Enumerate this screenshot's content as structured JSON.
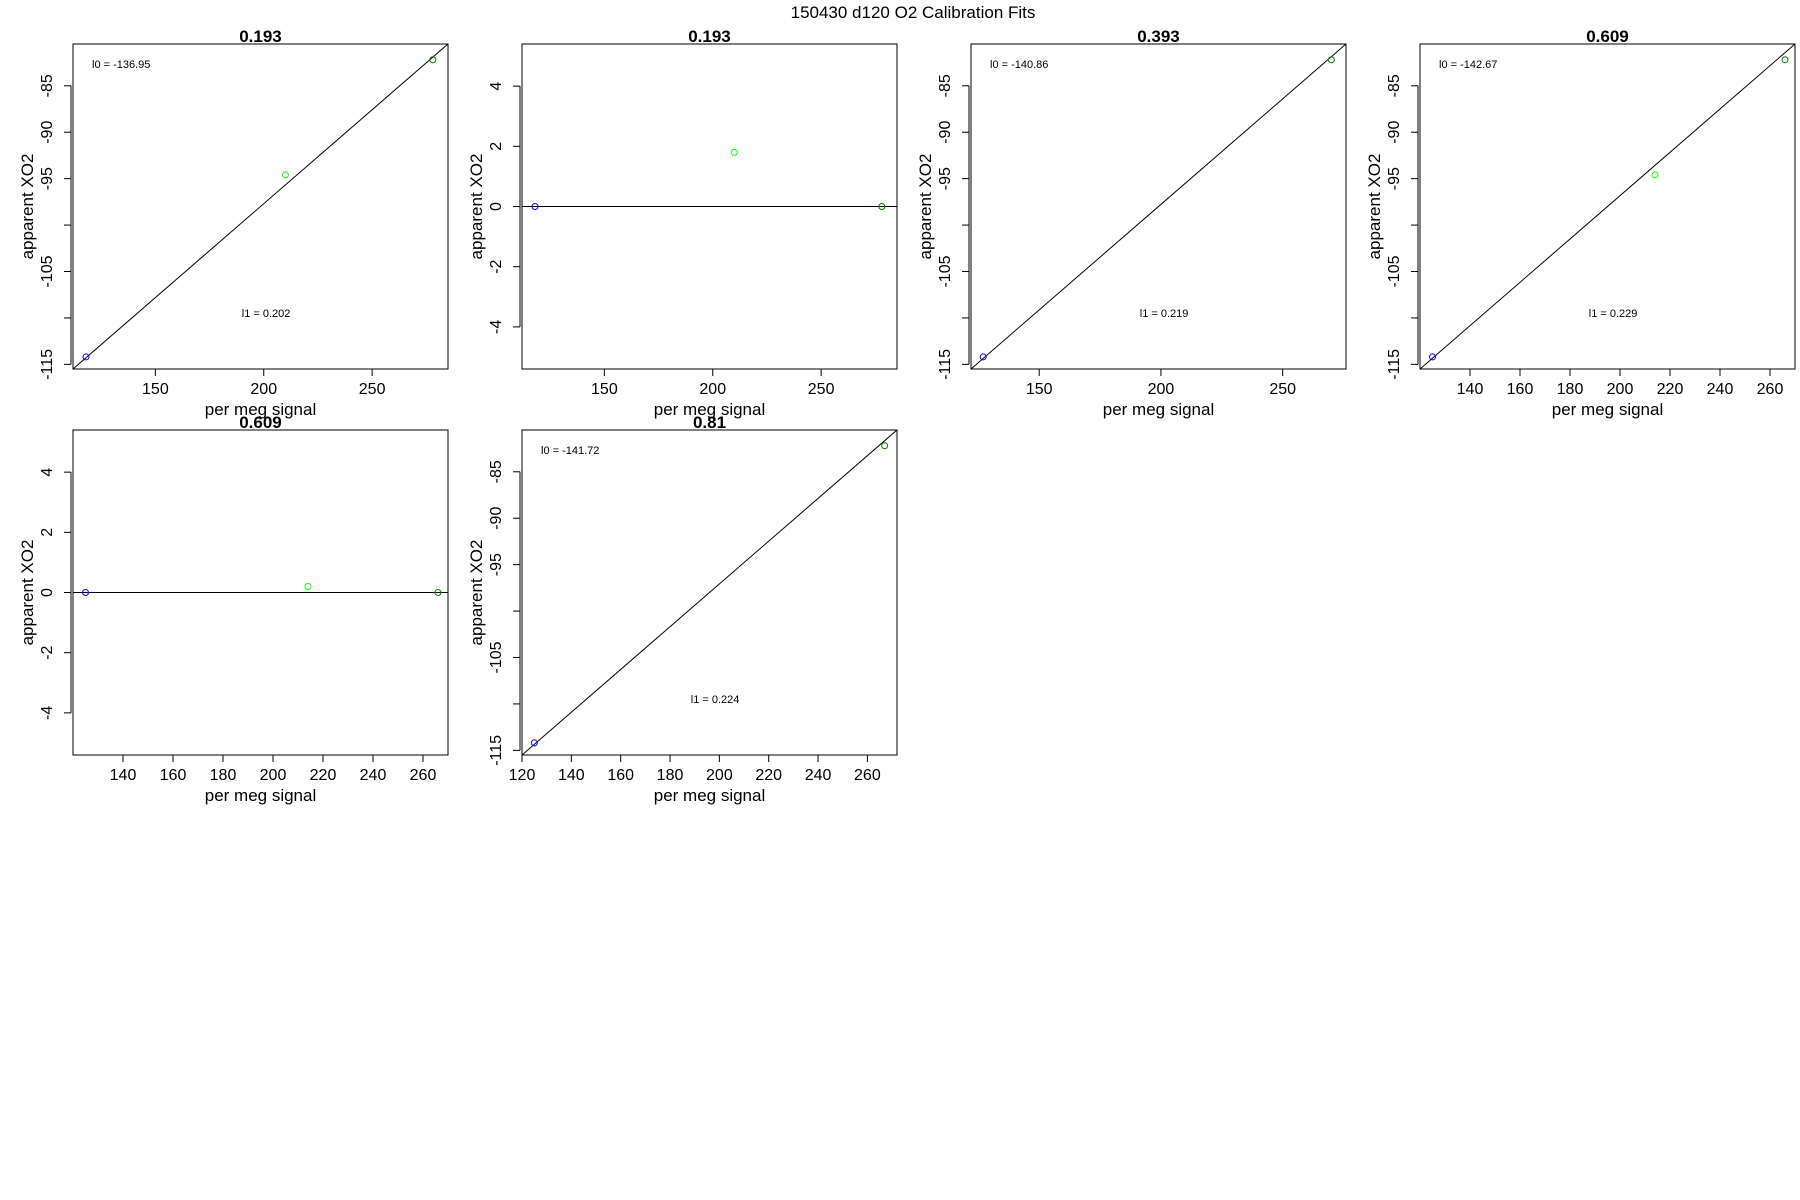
{
  "figure": {
    "title": "150430   d120   O2 Calibration Fits"
  },
  "chart_data": [
    {
      "type": "scatter",
      "title": "0.193",
      "xlabel": "per meg signal",
      "ylabel": "apparent XO2",
      "xlim": [
        112,
        285
      ],
      "ylim": [
        -115.5,
        -80.5
      ],
      "xticks": [
        150,
        200,
        250
      ],
      "yticks": [
        -115,
        -110,
        -105,
        -100,
        -95,
        -90,
        -85
      ],
      "ytick_labels": [
        "-115",
        "",
        "-105",
        "",
        "-95",
        "-90",
        "-85"
      ],
      "points": [
        {
          "x": 118,
          "y": -114.2,
          "color": "#0000ff"
        },
        {
          "x": 210,
          "y": -94.6,
          "color": "#00ff00"
        },
        {
          "x": 278,
          "y": -82.2,
          "color": "#008000"
        }
      ],
      "fit_line": {
        "x": [
          112,
          285
        ],
        "y": [
          -115.5,
          -80.5
        ]
      },
      "annotations": [
        {
          "text": "l0 =  -136.95",
          "pos": "top-left"
        },
        {
          "text": "l1 =  0.202",
          "pos": "center-right"
        }
      ]
    },
    {
      "type": "scatter",
      "title": "0.193",
      "xlabel": "per meg signal",
      "ylabel": "apparent XO2",
      "xlim": [
        112,
        285
      ],
      "ylim": [
        -5.4,
        5.4
      ],
      "xticks": [
        150,
        200,
        250
      ],
      "yticks": [
        -4,
        -2,
        0,
        2,
        4
      ],
      "ytick_labels": [
        "-4",
        "-2",
        "0",
        "2",
        "4"
      ],
      "points": [
        {
          "x": 118,
          "y": 0,
          "color": "#0000ff"
        },
        {
          "x": 210,
          "y": 1.8,
          "color": "#00ff00"
        },
        {
          "x": 278,
          "y": 0,
          "color": "#008000"
        }
      ],
      "fit_line": {
        "x": [
          112,
          285
        ],
        "y": [
          0,
          0
        ]
      },
      "annotations": []
    },
    {
      "type": "scatter",
      "title": "0.393",
      "xlabel": "per meg signal",
      "ylabel": "apparent XO2",
      "xlim": [
        122,
        276
      ],
      "ylim": [
        -115.5,
        -80.5
      ],
      "xticks": [
        150,
        200,
        250
      ],
      "yticks": [
        -115,
        -110,
        -105,
        -100,
        -95,
        -90,
        -85
      ],
      "ytick_labels": [
        "-115",
        "",
        "-105",
        "",
        "-95",
        "-90",
        "-85"
      ],
      "points": [
        {
          "x": 127,
          "y": -114.2,
          "color": "#0000ff"
        },
        {
          "x": 270,
          "y": -82.2,
          "color": "#008000"
        }
      ],
      "fit_line": {
        "x": [
          122,
          276
        ],
        "y": [
          -115.5,
          -80.5
        ]
      },
      "annotations": [
        {
          "text": "l0 =  -140.86",
          "pos": "top-left"
        },
        {
          "text": "l1 =  0.219",
          "pos": "center-right"
        }
      ]
    },
    {
      "type": "scatter",
      "title": "0.609",
      "xlabel": "per meg signal",
      "ylabel": "apparent XO2",
      "xlim": [
        120,
        270
      ],
      "ylim": [
        -115.5,
        -80.5
      ],
      "xticks": [
        140,
        160,
        180,
        200,
        220,
        240,
        260
      ],
      "yticks": [
        -115,
        -110,
        -105,
        -100,
        -95,
        -90,
        -85
      ],
      "ytick_labels": [
        "-115",
        "",
        "-105",
        "",
        "-95",
        "-90",
        "-85"
      ],
      "points": [
        {
          "x": 125,
          "y": -114.2,
          "color": "#0000ff"
        },
        {
          "x": 214,
          "y": -94.6,
          "color": "#00ff00"
        },
        {
          "x": 266,
          "y": -82.2,
          "color": "#008000"
        }
      ],
      "fit_line": {
        "x": [
          120,
          270
        ],
        "y": [
          -115.5,
          -80.5
        ]
      },
      "annotations": [
        {
          "text": "l0 =  -142.67",
          "pos": "top-left"
        },
        {
          "text": "l1 =  0.229",
          "pos": "center-right"
        }
      ]
    },
    {
      "type": "scatter",
      "title": "0.609",
      "xlabel": "per meg signal",
      "ylabel": "apparent XO2",
      "xlim": [
        120,
        270
      ],
      "ylim": [
        -5.4,
        5.4
      ],
      "xticks": [
        140,
        160,
        180,
        200,
        220,
        240,
        260
      ],
      "yticks": [
        -4,
        -2,
        0,
        2,
        4
      ],
      "ytick_labels": [
        "-4",
        "-2",
        "0",
        "2",
        "4"
      ],
      "points": [
        {
          "x": 125,
          "y": 0,
          "color": "#0000ff"
        },
        {
          "x": 214,
          "y": 0.2,
          "color": "#00ff00"
        },
        {
          "x": 266,
          "y": 0,
          "color": "#008000"
        }
      ],
      "fit_line": {
        "x": [
          120,
          270
        ],
        "y": [
          0,
          0
        ]
      },
      "annotations": []
    },
    {
      "type": "scatter",
      "title": "0.81",
      "xlabel": "per meg signal",
      "ylabel": "apparent XO2",
      "xlim": [
        120,
        272
      ],
      "ylim": [
        -115.5,
        -80.5
      ],
      "xticks": [
        120,
        140,
        160,
        180,
        200,
        220,
        240,
        260
      ],
      "yticks": [
        -115,
        -110,
        -105,
        -100,
        -95,
        -90,
        -85
      ],
      "ytick_labels": [
        "-115",
        "",
        "-105",
        "",
        "-95",
        "-90",
        "-85"
      ],
      "points": [
        {
          "x": 125,
          "y": -114.2,
          "color": "#0000ff"
        },
        {
          "x": 267,
          "y": -82.2,
          "color": "#008000"
        }
      ],
      "fit_line": {
        "x": [
          120,
          272
        ],
        "y": [
          -115.5,
          -80.5
        ]
      },
      "annotations": [
        {
          "text": "l0 =  -141.72",
          "pos": "top-left"
        },
        {
          "text": "l1 =  0.224",
          "pos": "center-right"
        }
      ]
    }
  ]
}
